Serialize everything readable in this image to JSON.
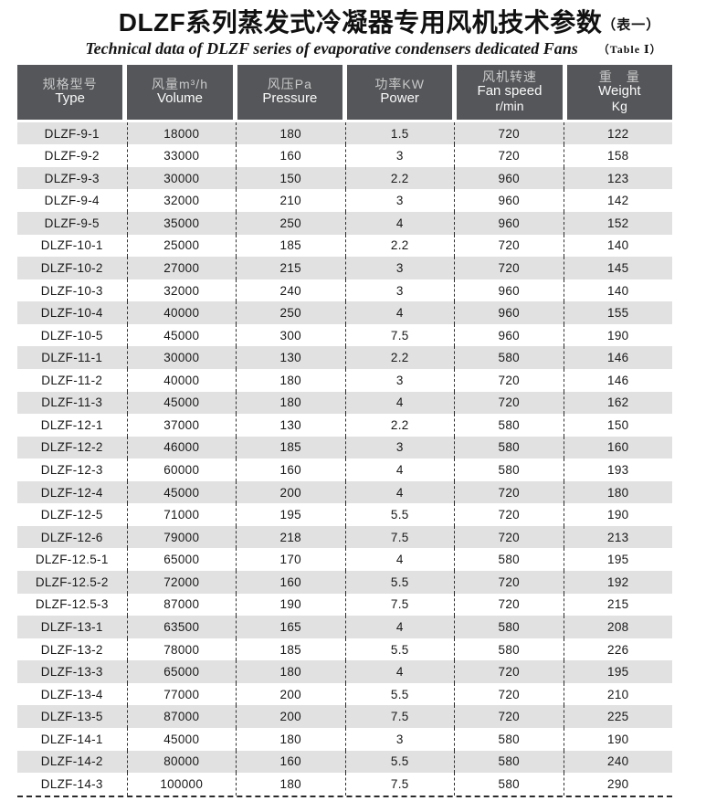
{
  "page": {
    "title_zh": "DLZF系列蒸发式冷凝器专用风机技术参数",
    "title_suffix": "（表一）",
    "subtitle_en": "Technical data of DLZF series of evaporative condensers dedicated Fans",
    "subtitle_suffix": "（Table Ⅰ）"
  },
  "colors": {
    "header_bg": "#545659",
    "header_text_zh": "#c9c9c9",
    "header_text_en": "#fafafa",
    "row_alt_bg": "#e1e1e1",
    "row_bg": "#ffffff",
    "data_text": "#191919",
    "dash_line": "#2b2b2b"
  },
  "table": {
    "column_keys": [
      "type",
      "volume",
      "pressure",
      "power",
      "fan_speed",
      "weight"
    ],
    "columns": [
      {
        "zh": "规格型号",
        "en": "Type"
      },
      {
        "zh": "风量m³/h",
        "en": "Volume"
      },
      {
        "zh": "风压Pa",
        "en": "Pressure"
      },
      {
        "zh": "功率KW",
        "en": "Power"
      },
      {
        "zh": "风机转速",
        "en": "Fan speed",
        "unit": "r/min"
      },
      {
        "zh": "重　量",
        "en": "Weight",
        "unit": "Kg"
      }
    ],
    "rows": [
      [
        "DLZF-9-1",
        "18000",
        "180",
        "1.5",
        "720",
        "122"
      ],
      [
        "DLZF-9-2",
        "33000",
        "160",
        "3",
        "720",
        "158"
      ],
      [
        "DLZF-9-3",
        "30000",
        "150",
        "2.2",
        "960",
        "123"
      ],
      [
        "DLZF-9-4",
        "32000",
        "210",
        "3",
        "960",
        "142"
      ],
      [
        "DLZF-9-5",
        "35000",
        "250",
        "4",
        "960",
        "152"
      ],
      [
        "DLZF-10-1",
        "25000",
        "185",
        "2.2",
        "720",
        "140"
      ],
      [
        "DLZF-10-2",
        "27000",
        "215",
        "3",
        "720",
        "145"
      ],
      [
        "DLZF-10-3",
        "32000",
        "240",
        "3",
        "960",
        "140"
      ],
      [
        "DLZF-10-4",
        "40000",
        "250",
        "4",
        "960",
        "155"
      ],
      [
        "DLZF-10-5",
        "45000",
        "300",
        "7.5",
        "960",
        "190"
      ],
      [
        "DLZF-11-1",
        "30000",
        "130",
        "2.2",
        "580",
        "146"
      ],
      [
        "DLZF-11-2",
        "40000",
        "180",
        "3",
        "720",
        "146"
      ],
      [
        "DLZF-11-3",
        "45000",
        "180",
        "4",
        "720",
        "162"
      ],
      [
        "DLZF-12-1",
        "37000",
        "130",
        "2.2",
        "580",
        "150"
      ],
      [
        "DLZF-12-2",
        "46000",
        "185",
        "3",
        "580",
        "160"
      ],
      [
        "DLZF-12-3",
        "60000",
        "160",
        "4",
        "580",
        "193"
      ],
      [
        "DLZF-12-4",
        "45000",
        "200",
        "4",
        "720",
        "180"
      ],
      [
        "DLZF-12-5",
        "71000",
        "195",
        "5.5",
        "720",
        "190"
      ],
      [
        "DLZF-12-6",
        "79000",
        "218",
        "7.5",
        "720",
        "213"
      ],
      [
        "DLZF-12.5-1",
        "65000",
        "170",
        "4",
        "580",
        "195"
      ],
      [
        "DLZF-12.5-2",
        "72000",
        "160",
        "5.5",
        "720",
        "192"
      ],
      [
        "DLZF-12.5-3",
        "87000",
        "190",
        "7.5",
        "720",
        "215"
      ],
      [
        "DLZF-13-1",
        "63500",
        "165",
        "4",
        "580",
        "208"
      ],
      [
        "DLZF-13-2",
        "78000",
        "185",
        "5.5",
        "580",
        "226"
      ],
      [
        "DLZF-13-3",
        "65000",
        "180",
        "4",
        "720",
        "195"
      ],
      [
        "DLZF-13-4",
        "77000",
        "200",
        "5.5",
        "720",
        "210"
      ],
      [
        "DLZF-13-5",
        "87000",
        "200",
        "7.5",
        "720",
        "225"
      ],
      [
        "DLZF-14-1",
        "45000",
        "180",
        "3",
        "580",
        "190"
      ],
      [
        "DLZF-14-2",
        "80000",
        "160",
        "5.5",
        "580",
        "240"
      ],
      [
        "DLZF-14-3",
        "100000",
        "180",
        "7.5",
        "580",
        "290"
      ]
    ]
  }
}
